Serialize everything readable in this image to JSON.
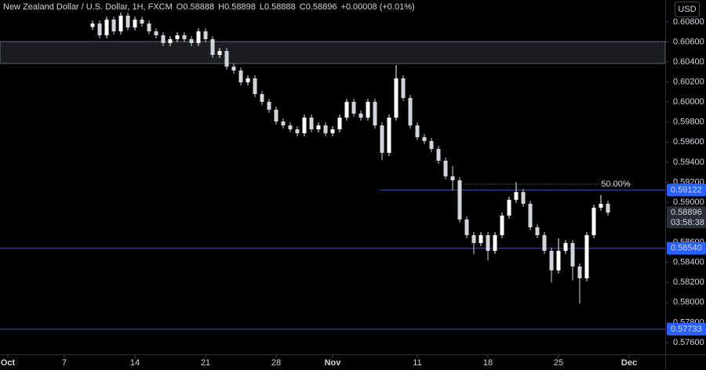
{
  "chart_data": {
    "type": "candlestick",
    "title": "New Zealand Dollar / U.S. Dollar, 1H, FXCM",
    "readout": [
      {
        "label": "O",
        "value": 0.58888
      },
      {
        "label": "H",
        "value": 0.58898
      },
      {
        "label": "L",
        "value": 0.58888
      },
      {
        "label": "C",
        "value": 0.58896
      }
    ],
    "change": "+0.00008 (+0.01%)",
    "currency": "USD",
    "up_color": "#ffffff",
    "down_color": "#d1d4dc",
    "grid": false,
    "xlim": [
      -0.556,
      46.556
    ],
    "ylim": [
      0.57482,
      0.61019
    ],
    "xticks": [
      {
        "value": 0,
        "label": "Oct"
      },
      {
        "value": 4,
        "label": "7"
      },
      {
        "value": 9,
        "label": "14"
      },
      {
        "value": 14,
        "label": "21"
      },
      {
        "value": 19,
        "label": "28"
      },
      {
        "value": 23,
        "label": "Nov"
      },
      {
        "value": 29,
        "label": "11"
      },
      {
        "value": 34,
        "label": "18"
      },
      {
        "value": 39,
        "label": "25"
      },
      {
        "value": 44,
        "label": "Dec"
      }
    ],
    "yticks": [
      {
        "value": 0.608,
        "label": "0.60800"
      },
      {
        "value": 0.606,
        "label": "0.60600"
      },
      {
        "value": 0.604,
        "label": "0.60400"
      },
      {
        "value": 0.602,
        "label": "0.60200"
      },
      {
        "value": 0.6,
        "label": "0.60000"
      },
      {
        "value": 0.598,
        "label": "0.59800"
      },
      {
        "value": 0.596,
        "label": "0.59600"
      },
      {
        "value": 0.594,
        "label": "0.59400"
      },
      {
        "value": 0.592,
        "label": "0.59200"
      },
      {
        "value": 0.59,
        "label": "0.59000"
      },
      {
        "value": 0.586,
        "label": "0.58600"
      },
      {
        "value": 0.584,
        "label": "0.58400"
      },
      {
        "value": 0.582,
        "label": "0.58200"
      },
      {
        "value": 0.58,
        "label": "0.58000"
      },
      {
        "value": 0.578,
        "label": "0.57800"
      },
      {
        "value": 0.576,
        "label": "0.57600"
      }
    ],
    "zone": {
      "low": 0.60385,
      "high": 0.60604
    },
    "levels": [
      {
        "value": 0.59122,
        "label": "0.59122",
        "x_start": 26.3
      },
      {
        "value": 0.5854,
        "label": "0.58540"
      },
      {
        "value": 0.57733,
        "label": "0.57733"
      }
    ],
    "fib": {
      "label": "50.00%",
      "value": 0.5918,
      "x_start": 32.3,
      "x_end": 44.2
    },
    "last": {
      "value": 0.58896,
      "label": "0.58896",
      "countdown": "03:58:38"
    },
    "x": [
      6,
      6.5,
      7,
      7.5,
      8,
      8.5,
      9,
      9.5,
      10,
      10.5,
      11,
      11.5,
      12,
      12.5,
      13,
      13.5,
      14,
      14.5,
      15,
      15.5,
      16,
      16.5,
      17,
      17.5,
      18,
      18.5,
      19,
      19.5,
      20,
      20.5,
      21,
      21.5,
      22,
      22.5,
      23,
      23.5,
      24,
      24.5,
      25,
      25.5,
      26,
      26.5,
      27,
      27.5,
      28,
      28.5,
      29,
      29.5,
      30,
      30.5,
      31,
      31.5,
      32,
      32.5,
      33,
      33.5,
      34,
      34.5,
      35,
      35.5,
      36,
      36.5,
      37,
      37.5,
      38,
      38.5,
      39,
      39.5,
      40,
      40.5,
      41,
      41.5,
      42,
      42.5
    ],
    "ohlc": [
      [
        0.6075,
        0.60814,
        0.6072,
        0.60784
      ],
      [
        0.60784,
        0.60814,
        0.60637,
        0.60667
      ],
      [
        0.60667,
        0.60853,
        0.60637,
        0.60823
      ],
      [
        0.60823,
        0.60853,
        0.60676,
        0.60706
      ],
      [
        0.60706,
        0.60893,
        0.60676,
        0.60863
      ],
      [
        0.60863,
        0.60893,
        0.60715,
        0.60745
      ],
      [
        0.60745,
        0.60853,
        0.60715,
        0.60823
      ],
      [
        0.60823,
        0.60853,
        0.60754,
        0.60784
      ],
      [
        0.60784,
        0.60814,
        0.60676,
        0.60706
      ],
      [
        0.60706,
        0.60736,
        0.60637,
        0.60667
      ],
      [
        0.60667,
        0.60697,
        0.60559,
        0.60589
      ],
      [
        0.60589,
        0.60658,
        0.60559,
        0.60628
      ],
      [
        0.60628,
        0.60697,
        0.60598,
        0.60667
      ],
      [
        0.60667,
        0.60697,
        0.60598,
        0.60628
      ],
      [
        0.60628,
        0.60658,
        0.60559,
        0.60589
      ],
      [
        0.60589,
        0.60736,
        0.60559,
        0.60706
      ],
      [
        0.60706,
        0.60736,
        0.60598,
        0.60628
      ],
      [
        0.60628,
        0.60658,
        0.60441,
        0.60471
      ],
      [
        0.60471,
        0.6054,
        0.60441,
        0.6051
      ],
      [
        0.6051,
        0.6054,
        0.60324,
        0.60354
      ],
      [
        0.60354,
        0.60384,
        0.60285,
        0.60315
      ],
      [
        0.60315,
        0.60345,
        0.60167,
        0.60197
      ],
      [
        0.60197,
        0.60267,
        0.60167,
        0.60237
      ],
      [
        0.60237,
        0.60267,
        0.6005,
        0.6008
      ],
      [
        0.6008,
        0.6011,
        0.59972,
        0.60002
      ],
      [
        0.60002,
        0.60032,
        0.59894,
        0.59924
      ],
      [
        0.59924,
        0.59954,
        0.59776,
        0.59806
      ],
      [
        0.59806,
        0.59836,
        0.59737,
        0.59767
      ],
      [
        0.59767,
        0.59797,
        0.59698,
        0.59728
      ],
      [
        0.59728,
        0.59758,
        0.59659,
        0.59689
      ],
      [
        0.59689,
        0.59875,
        0.59659,
        0.59845
      ],
      [
        0.59845,
        0.59875,
        0.59698,
        0.59728
      ],
      [
        0.59728,
        0.59797,
        0.59698,
        0.59767
      ],
      [
        0.59767,
        0.59797,
        0.59659,
        0.59689
      ],
      [
        0.59689,
        0.59758,
        0.59659,
        0.59728
      ],
      [
        0.59728,
        0.59875,
        0.59698,
        0.59845
      ],
      [
        0.59845,
        0.60032,
        0.59815,
        0.60002
      ],
      [
        0.60002,
        0.60032,
        0.59855,
        0.59885
      ],
      [
        0.59885,
        0.59915,
        0.59815,
        0.59845
      ],
      [
        0.59845,
        0.60032,
        0.59815,
        0.60002
      ],
      [
        0.60002,
        0.60032,
        0.59737,
        0.59767
      ],
      [
        0.59767,
        0.59797,
        0.5942,
        0.59493
      ],
      [
        0.59493,
        0.59875,
        0.59463,
        0.59845
      ],
      [
        0.59845,
        0.6037,
        0.59815,
        0.60237
      ],
      [
        0.60237,
        0.60267,
        0.60011,
        0.60041
      ],
      [
        0.60041,
        0.60071,
        0.59737,
        0.59767
      ],
      [
        0.59767,
        0.59797,
        0.5962,
        0.5965
      ],
      [
        0.5965,
        0.5968,
        0.59581,
        0.59611
      ],
      [
        0.59611,
        0.59641,
        0.59502,
        0.59532
      ],
      [
        0.59532,
        0.59562,
        0.59385,
        0.59415
      ],
      [
        0.59415,
        0.59445,
        0.59229,
        0.59259
      ],
      [
        0.59259,
        0.5936,
        0.5912,
        0.59219
      ],
      [
        0.59219,
        0.59249,
        0.58798,
        0.58828
      ],
      [
        0.58828,
        0.58858,
        0.58642,
        0.58672
      ],
      [
        0.58672,
        0.58702,
        0.5848,
        0.58593
      ],
      [
        0.58593,
        0.58702,
        0.58563,
        0.58672
      ],
      [
        0.58672,
        0.58702,
        0.5842,
        0.58515
      ],
      [
        0.58515,
        0.58702,
        0.58485,
        0.58672
      ],
      [
        0.58672,
        0.58897,
        0.58642,
        0.58867
      ],
      [
        0.58867,
        0.59054,
        0.58837,
        0.59024
      ],
      [
        0.59024,
        0.592,
        0.58994,
        0.59102
      ],
      [
        0.59102,
        0.59132,
        0.58955,
        0.58985
      ],
      [
        0.58985,
        0.59015,
        0.5872,
        0.5875
      ],
      [
        0.5875,
        0.5878,
        0.58642,
        0.58672
      ],
      [
        0.58672,
        0.58702,
        0.58485,
        0.58515
      ],
      [
        0.58515,
        0.58545,
        0.582,
        0.5832
      ],
      [
        0.5832,
        0.5864,
        0.5829,
        0.58515
      ],
      [
        0.58515,
        0.58623,
        0.58485,
        0.58593
      ],
      [
        0.58593,
        0.58623,
        0.5822,
        0.58359
      ],
      [
        0.58359,
        0.58389,
        0.5799,
        0.58241
      ],
      [
        0.58241,
        0.58702,
        0.58211,
        0.58672
      ],
      [
        0.58672,
        0.58976,
        0.58642,
        0.58946
      ],
      [
        0.58946,
        0.5907,
        0.58916,
        0.58985
      ],
      [
        0.58985,
        0.59015,
        0.58866,
        0.58896
      ]
    ]
  }
}
